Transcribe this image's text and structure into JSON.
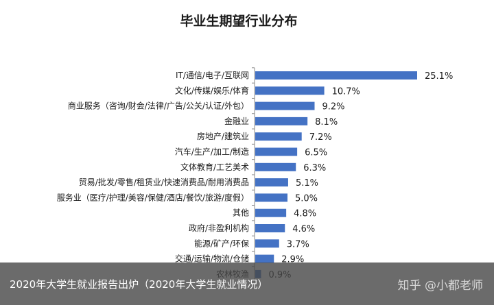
{
  "chart_data": {
    "type": "bar",
    "orientation": "horizontal",
    "title": "毕业生期望行业分布",
    "categories": [
      "IT/通信/电子/互联网",
      "文化/传媒/娱乐/体育",
      "商业服务（咨询/财会/法律/广告/公关/认证/外包）",
      "金融业",
      "房地产/建筑业",
      "汽车/生产/加工/制造",
      "文体教育/工艺美术",
      "贸易/批发/零售/租赁业/快速消费品/耐用消费品",
      "服务业（医疗/护理/美容/保健/酒店/餐饮/旅游/度假）",
      "其他",
      "政府/非盈利机构",
      "能源/矿产/环保",
      "交通/运输/物流/仓储",
      "农林牧渔"
    ],
    "values": [
      25.1,
      10.7,
      9.2,
      8.1,
      7.2,
      6.5,
      6.3,
      5.1,
      5.0,
      4.8,
      4.6,
      3.7,
      2.9,
      0.9
    ],
    "value_labels": [
      "25.1%",
      "10.7%",
      "9.2%",
      "8.1%",
      "7.2%",
      "6.5%",
      "6.3%",
      "5.1%",
      "5.0%",
      "4.8%",
      "4.6%",
      "3.7%",
      "2.9%",
      "0.9%"
    ],
    "xlim": [
      0,
      25.1
    ],
    "grid": false,
    "legend": false,
    "bar_color": "#4472c4"
  },
  "caption": {
    "text": "2020年大学生就业报告出炉（2020年大学生就业情况）",
    "watermark": "知乎 @小都老师"
  }
}
